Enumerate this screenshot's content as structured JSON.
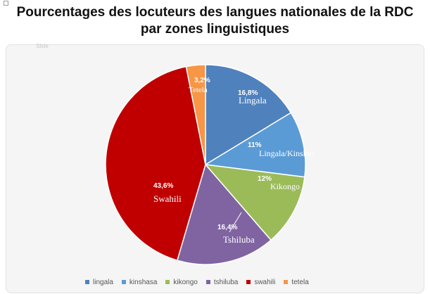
{
  "title": {
    "line1": "Pourcentages des locuteurs des langues nationales de la RDC",
    "line2": "par zones linguistiques"
  },
  "faint_label": "Slide",
  "chart_data": {
    "type": "pie",
    "title": "Pourcentages des locuteurs des langues nationales de la RDC par zones linguistiques",
    "slices": [
      {
        "key": "lingala",
        "legend": "lingala",
        "name": "Lingala",
        "value": 16.8,
        "label": "16,8%",
        "color": "#4f81bd"
      },
      {
        "key": "kinshasa",
        "legend": "kinshasa",
        "name": "Lingala/Kinshas",
        "value": 11,
        "label": "11%",
        "color": "#5b9bd5"
      },
      {
        "key": "kikongo",
        "legend": "kikongo",
        "name": "Kikongo",
        "value": 12,
        "label": "12%",
        "color": "#9bbb59"
      },
      {
        "key": "tshiluba",
        "legend": "tshiluba",
        "name": "Tshiluba",
        "value": 16.4,
        "label": "16,4%",
        "color": "#8064a2"
      },
      {
        "key": "swahili",
        "legend": "swahili",
        "name": "Swahili",
        "value": 43.6,
        "label": "43,6%",
        "color": "#c00000"
      },
      {
        "key": "tetela",
        "legend": "tetela",
        "name": "Tetela",
        "value": 3.2,
        "label": "3,2%",
        "color": "#f79646"
      }
    ],
    "legend_position": "bottom"
  }
}
